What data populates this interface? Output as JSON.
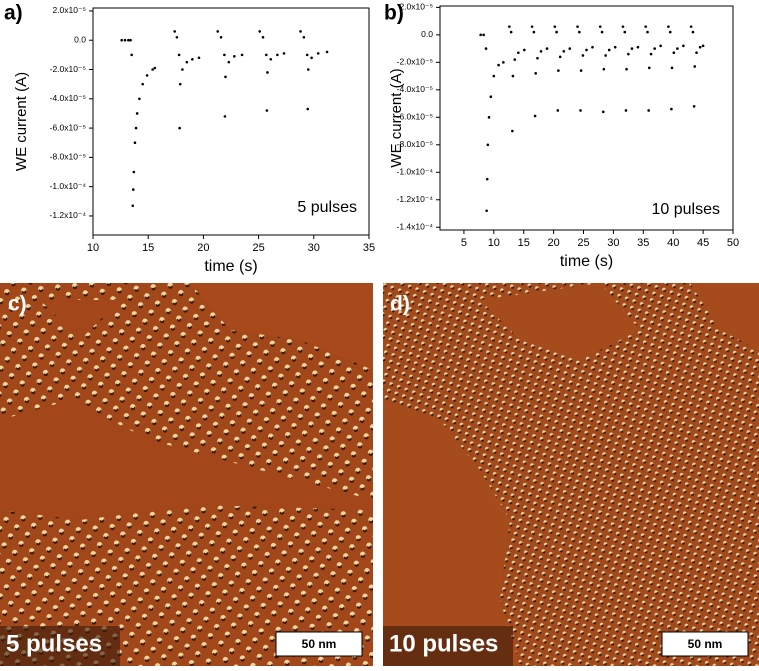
{
  "chart_data": [
    {
      "type": "scatter",
      "label": "a)",
      "x_label": "time (s)",
      "y_label": "WE current (A)",
      "annotation": "5 pulses",
      "color": "#000000",
      "x": [
        12.6,
        12.9,
        13.2,
        13.4,
        13.5,
        13.6,
        13.65,
        13.7,
        13.8,
        13.9,
        14.0,
        14.2,
        14.5,
        14.9,
        15.4,
        15.6,
        17.4,
        17.6,
        17.8,
        17.85,
        17.9,
        18.1,
        18.5,
        19.0,
        19.6,
        21.3,
        21.6,
        21.9,
        21.95,
        22.0,
        22.3,
        22.8,
        23.5,
        25.1,
        25.4,
        25.7,
        25.75,
        25.8,
        26.1,
        26.7,
        27.3,
        28.8,
        29.1,
        29.4,
        29.45,
        29.5,
        29.8,
        30.4,
        31.2
      ],
      "y": [
        0,
        0,
        0,
        0,
        -1e-05,
        -0.000113,
        -0.000102,
        -9e-05,
        -7e-05,
        -6e-05,
        -5e-05,
        -4e-05,
        -3e-05,
        -2.4e-05,
        -2e-05,
        -1.9e-05,
        6e-06,
        2e-06,
        -1e-05,
        -6e-05,
        -3e-05,
        -2e-05,
        -1.5e-05,
        -1.3e-05,
        -1.2e-05,
        6e-06,
        2e-06,
        -1e-05,
        -5.2e-05,
        -2.5e-05,
        -1.5e-05,
        -1.1e-05,
        -1e-05,
        6e-06,
        2e-06,
        -1e-05,
        -4.8e-05,
        -2.2e-05,
        -1.3e-05,
        -1e-05,
        -9e-06,
        6e-06,
        2e-06,
        -1e-05,
        -4.7e-05,
        -2e-05,
        -1.2e-05,
        -9e-06,
        -8e-06
      ],
      "xlim": [
        10,
        35
      ],
      "ylim": [
        -0.000133,
        2.2e-05
      ],
      "xticks": [
        10,
        15,
        20,
        25,
        30,
        35
      ],
      "yticks": [
        {
          "value": 2e-05,
          "label": "2.0x10⁻⁵"
        },
        {
          "value": 0,
          "label": "0.0"
        },
        {
          "value": -2e-05,
          "label": "-2.0x10⁻⁵"
        },
        {
          "value": -4e-05,
          "label": "-4.0x10⁻⁵"
        },
        {
          "value": -6e-05,
          "label": "-6.0x10⁻⁵"
        },
        {
          "value": -8e-05,
          "label": "-8.0x10⁻⁵"
        },
        {
          "value": -0.0001,
          "label": "-1.0x10⁻⁴"
        },
        {
          "value": -0.00012,
          "label": "-1.2x10⁻⁴"
        }
      ]
    },
    {
      "type": "scatter",
      "label": "b)",
      "x_label": "time (s)",
      "y_label": "WE current (A)",
      "annotation": "10 pulses",
      "color": "#000000",
      "x": [
        7.8,
        8.3,
        8.7,
        8.8,
        8.9,
        9.0,
        9.2,
        9.5,
        10.0,
        10.8,
        11.6,
        12.6,
        12.9,
        13.1,
        13.2,
        13.5,
        14.1,
        15.1,
        16.4,
        16.7,
        16.9,
        17.0,
        17.3,
        17.9,
        18.9,
        20.2,
        20.5,
        20.7,
        20.8,
        21.1,
        21.7,
        22.7,
        24.0,
        24.3,
        24.5,
        24.6,
        24.9,
        25.5,
        26.5,
        27.8,
        28.1,
        28.3,
        28.4,
        28.7,
        29.3,
        30.3,
        31.6,
        31.9,
        32.1,
        32.2,
        32.5,
        33.1,
        34.1,
        35.4,
        35.7,
        35.9,
        36.0,
        36.3,
        36.9,
        37.9,
        39.2,
        39.5,
        39.7,
        39.8,
        40.1,
        40.7,
        41.7,
        43.0,
        43.3,
        43.5,
        43.6,
        43.9,
        44.5,
        45.0
      ],
      "y": [
        0,
        0,
        -1e-05,
        -0.000128,
        -0.000105,
        -8e-05,
        -6e-05,
        -4.5e-05,
        -3e-05,
        -2.2e-05,
        -2e-05,
        6e-06,
        2e-06,
        -7e-05,
        -3e-05,
        -1.8e-05,
        -1.3e-05,
        -1.1e-05,
        6e-06,
        2e-06,
        -5.9e-05,
        -2.8e-05,
        -1.7e-05,
        -1.2e-05,
        -1e-05,
        6e-06,
        2e-06,
        -5.5e-05,
        -2.6e-05,
        -1.6e-05,
        -1.2e-05,
        -1e-05,
        6e-06,
        2e-06,
        -5.5e-05,
        -2.6e-05,
        -1.5e-05,
        -1.1e-05,
        -9e-06,
        6e-06,
        2e-06,
        -5.6e-05,
        -2.5e-05,
        -1.5e-05,
        -1.1e-05,
        -9e-06,
        6e-06,
        2e-06,
        -5.5e-05,
        -2.5e-05,
        -1.4e-05,
        -1e-05,
        -9e-06,
        6e-06,
        2e-06,
        -5.5e-05,
        -2.4e-05,
        -1.4e-05,
        -1e-05,
        -8e-06,
        6e-06,
        2e-06,
        -5.4e-05,
        -2.4e-05,
        -1.3e-05,
        -1e-05,
        -8e-06,
        6e-06,
        2e-06,
        -5.2e-05,
        -2.3e-05,
        -1.3e-05,
        -9e-06,
        -8e-06
      ],
      "xlim": [
        1,
        50
      ],
      "ylim": [
        -0.000142,
        2.1e-05
      ],
      "xticks": [
        5,
        10,
        15,
        20,
        25,
        30,
        35,
        40,
        45,
        50
      ],
      "yticks": [
        {
          "value": 2e-05,
          "label": "2.0x10⁻⁵"
        },
        {
          "value": 0,
          "label": "0.0"
        },
        {
          "value": -2e-05,
          "label": "-2.0x10⁻⁵"
        },
        {
          "value": -4e-05,
          "label": "-4.0x10⁻⁵"
        },
        {
          "value": -6e-05,
          "label": "-6.0x10⁻⁵"
        },
        {
          "value": -8e-05,
          "label": "-8.0x10⁻⁵"
        },
        {
          "value": -0.0001,
          "label": "-1.0x10⁻⁴"
        },
        {
          "value": -0.00012,
          "label": "-1.2x10⁻⁴"
        },
        {
          "value": -0.00014,
          "label": "-1.4x10⁻⁴"
        }
      ]
    }
  ],
  "images": [
    {
      "label": "c)",
      "caption": "5 pulses",
      "scale_bar": "50 nm"
    },
    {
      "label": "d)",
      "caption": "10 pulses",
      "scale_bar": "50 nm"
    }
  ]
}
